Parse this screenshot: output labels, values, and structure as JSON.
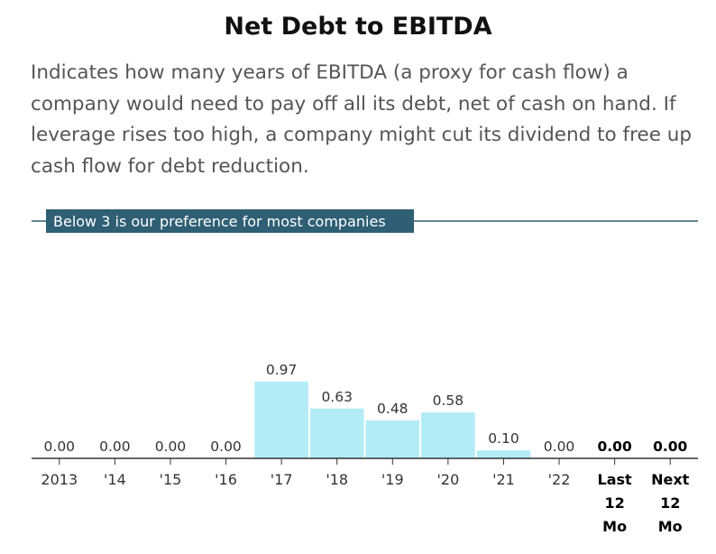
{
  "chart_data": {
    "type": "bar",
    "title": "Net Debt to EBITDA",
    "subtitle": "Indicates how many years of EBITDA (a proxy for cash flow) a company would need to pay off all its debt, net of cash on hand. If leverage rises too high, a company might cut its dividend to free up cash flow for debt reduction.",
    "categories": [
      "2013",
      "'14",
      "'15",
      "'16",
      "'17",
      "'18",
      "'19",
      "'20",
      "'21",
      "'22",
      "Last 12 Mo",
      "Next 12 Mo"
    ],
    "values": [
      0.0,
      0.0,
      0.0,
      0.0,
      0.97,
      0.63,
      0.48,
      0.58,
      0.1,
      0.0,
      0.0,
      0.0
    ],
    "value_labels": [
      "0.00",
      "0.00",
      "0.00",
      "0.00",
      "0.97",
      "0.63",
      "0.48",
      "0.58",
      "0.10",
      "0.00",
      "0.00",
      "0.00"
    ],
    "emphasized": [
      false,
      false,
      false,
      false,
      false,
      false,
      false,
      false,
      false,
      false,
      true,
      true
    ],
    "reference_line": {
      "value": 3,
      "label": "Below 3 is our preference for most companies"
    },
    "ylim": [
      0,
      3
    ],
    "xlabel": "",
    "ylabel": "",
    "grid": false,
    "colors": {
      "bar": "#b3ecf7",
      "reference": "#2f5f74",
      "axis": "#333333"
    }
  }
}
